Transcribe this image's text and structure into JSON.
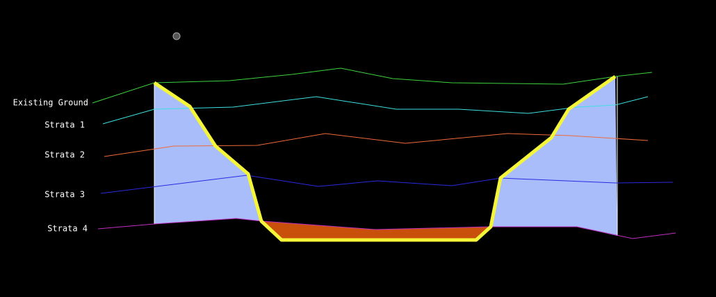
{
  "layers": [
    "Existing Ground",
    "Strata 1",
    "Strata 2",
    "Strata 3",
    "Strata 4"
  ]
}
